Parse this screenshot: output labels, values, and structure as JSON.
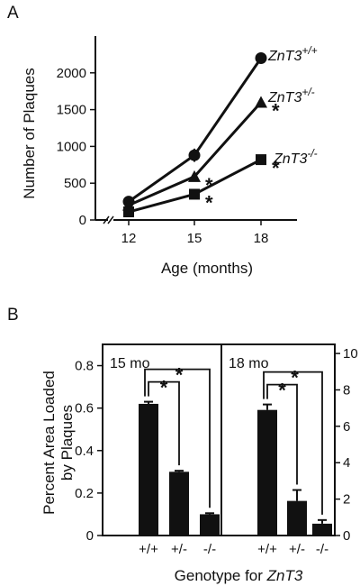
{
  "chart_data": [
    {
      "panel": "A",
      "type": "line",
      "xlabel": "Age (months)",
      "ylabel": "Number of Plaques",
      "x": [
        12,
        15,
        18
      ],
      "x_ticks": [
        "12",
        "15",
        "18"
      ],
      "ylim": [
        0,
        2500
      ],
      "y_ticks": [
        "0",
        "500",
        "1000",
        "1500",
        "2000"
      ],
      "y_tick_values": [
        0,
        500,
        1000,
        1500,
        2000
      ],
      "series": [
        {
          "name_base": "ZnT3",
          "name_sup": "+/+",
          "marker": "circle",
          "values": [
            250,
            880,
            2200
          ],
          "errors": [
            40,
            90,
            70
          ],
          "stars": [
            false,
            false,
            false
          ]
        },
        {
          "name_base": "ZnT3",
          "name_sup": "+/-",
          "marker": "triangle",
          "values": [
            200,
            590,
            1600
          ],
          "errors": [
            30,
            60,
            60
          ],
          "stars": [
            false,
            true,
            true
          ]
        },
        {
          "name_base": "ZnT3",
          "name_sup": "-/-",
          "marker": "square",
          "values": [
            110,
            350,
            820
          ],
          "errors": [
            20,
            30,
            30
          ],
          "stars": [
            false,
            true,
            true
          ]
        }
      ],
      "star_symbol": "*"
    },
    {
      "panel": "B",
      "type": "bar",
      "ylabel_lines": [
        "Percent Area Loaded",
        "by Plaques"
      ],
      "xlabel_prefix": "Genotype for ",
      "xlabel_italic": "ZnT3",
      "left_ylim": [
        0,
        0.9
      ],
      "left_ticks": [
        "0",
        "0.2",
        "0.4",
        "0.6",
        "0.8"
      ],
      "left_tick_values": [
        0,
        0.2,
        0.4,
        0.6,
        0.8
      ],
      "right_ylim": [
        0,
        10.5
      ],
      "right_ticks": [
        "0",
        "2",
        "4",
        "6",
        "8",
        "10"
      ],
      "right_tick_values": [
        0,
        2,
        4,
        6,
        8,
        10
      ],
      "groups": [
        {
          "label": "15 mo",
          "axis": "left",
          "categories": [
            "+/+",
            "+/-",
            "-/-"
          ],
          "values": [
            0.62,
            0.3,
            0.1
          ],
          "errors": [
            0.01,
            0.005,
            0.005
          ]
        },
        {
          "label": "18 mo",
          "axis": "right",
          "categories": [
            "+/+",
            "+/-",
            "-/-"
          ],
          "values": [
            6.9,
            1.9,
            0.65
          ],
          "errors": [
            0.3,
            0.6,
            0.2
          ]
        }
      ],
      "star_symbol": "*"
    }
  ]
}
